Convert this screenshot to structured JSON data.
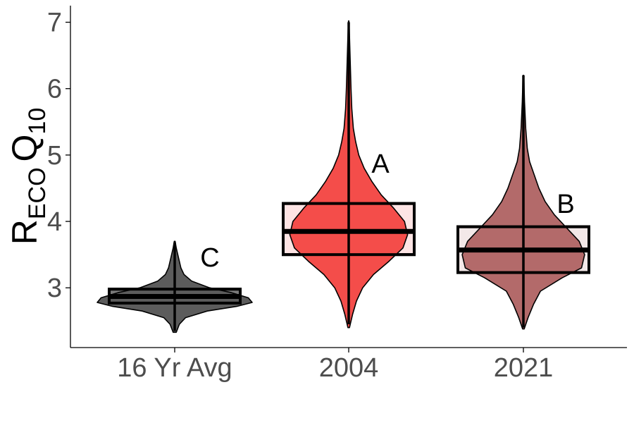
{
  "chart_data": {
    "type": "violin_box",
    "ylabel": {
      "main_R": "R",
      "sub_ECO": "ECO",
      "main_Q": "Q",
      "sub_10": "10"
    },
    "ylim": [
      2.1,
      7.25
    ],
    "yticks": [
      3,
      4,
      5,
      6,
      7
    ],
    "grid": false,
    "legend": "none",
    "categories": [
      "16 Yr Avg",
      "2004",
      "2021"
    ],
    "series": [
      {
        "category": "16 Yr Avg",
        "violin_color": "#5c5c5c",
        "box_fill": "#7a7a7a",
        "group_letter": "C",
        "box": {
          "q1": 2.77,
          "median": 2.87,
          "q3": 2.98,
          "whisker_low": 2.35,
          "whisker_high": 3.68
        },
        "density": [
          [
            2.33,
            0.02
          ],
          [
            2.45,
            0.06
          ],
          [
            2.55,
            0.14
          ],
          [
            2.65,
            0.42
          ],
          [
            2.72,
            0.8
          ],
          [
            2.78,
            1.0
          ],
          [
            2.85,
            0.95
          ],
          [
            2.93,
            0.72
          ],
          [
            3.0,
            0.45
          ],
          [
            3.1,
            0.22
          ],
          [
            3.2,
            0.12
          ],
          [
            3.3,
            0.08
          ],
          [
            3.45,
            0.05
          ],
          [
            3.6,
            0.02
          ],
          [
            3.7,
            0.005
          ]
        ]
      },
      {
        "category": "2004",
        "violin_color": "#f44d4a",
        "box_fill": "#fde4e4",
        "group_letter": "A",
        "box": {
          "q1": 3.5,
          "median": 3.85,
          "q3": 4.27,
          "whisker_low": 2.45,
          "whisker_high": 7.0
        },
        "density": [
          [
            2.4,
            0.01
          ],
          [
            2.6,
            0.05
          ],
          [
            2.8,
            0.1
          ],
          [
            3.0,
            0.18
          ],
          [
            3.2,
            0.32
          ],
          [
            3.4,
            0.52
          ],
          [
            3.6,
            0.7
          ],
          [
            3.8,
            0.76
          ],
          [
            4.0,
            0.72
          ],
          [
            4.2,
            0.58
          ],
          [
            4.4,
            0.42
          ],
          [
            4.6,
            0.3
          ],
          [
            4.8,
            0.2
          ],
          [
            5.0,
            0.13
          ],
          [
            5.2,
            0.09
          ],
          [
            5.4,
            0.06
          ],
          [
            5.7,
            0.04
          ],
          [
            6.0,
            0.03
          ],
          [
            6.4,
            0.02
          ],
          [
            6.8,
            0.01
          ],
          [
            7.02,
            0.003
          ]
        ]
      },
      {
        "category": "2021",
        "violin_color": "#b36a6a",
        "box_fill": "#f3e8e8",
        "group_letter": "B",
        "box": {
          "q1": 3.23,
          "median": 3.57,
          "q3": 3.92,
          "whisker_low": 2.4,
          "whisker_high": 6.2
        },
        "density": [
          [
            2.38,
            0.01
          ],
          [
            2.55,
            0.06
          ],
          [
            2.75,
            0.13
          ],
          [
            2.95,
            0.22
          ],
          [
            3.15,
            0.5
          ],
          [
            3.3,
            0.75
          ],
          [
            3.5,
            0.79
          ],
          [
            3.7,
            0.72
          ],
          [
            3.9,
            0.56
          ],
          [
            4.1,
            0.4
          ],
          [
            4.3,
            0.28
          ],
          [
            4.5,
            0.2
          ],
          [
            4.7,
            0.14
          ],
          [
            4.9,
            0.08
          ],
          [
            5.1,
            0.05
          ],
          [
            5.4,
            0.03
          ],
          [
            5.8,
            0.015
          ],
          [
            6.2,
            0.005
          ]
        ]
      }
    ]
  }
}
